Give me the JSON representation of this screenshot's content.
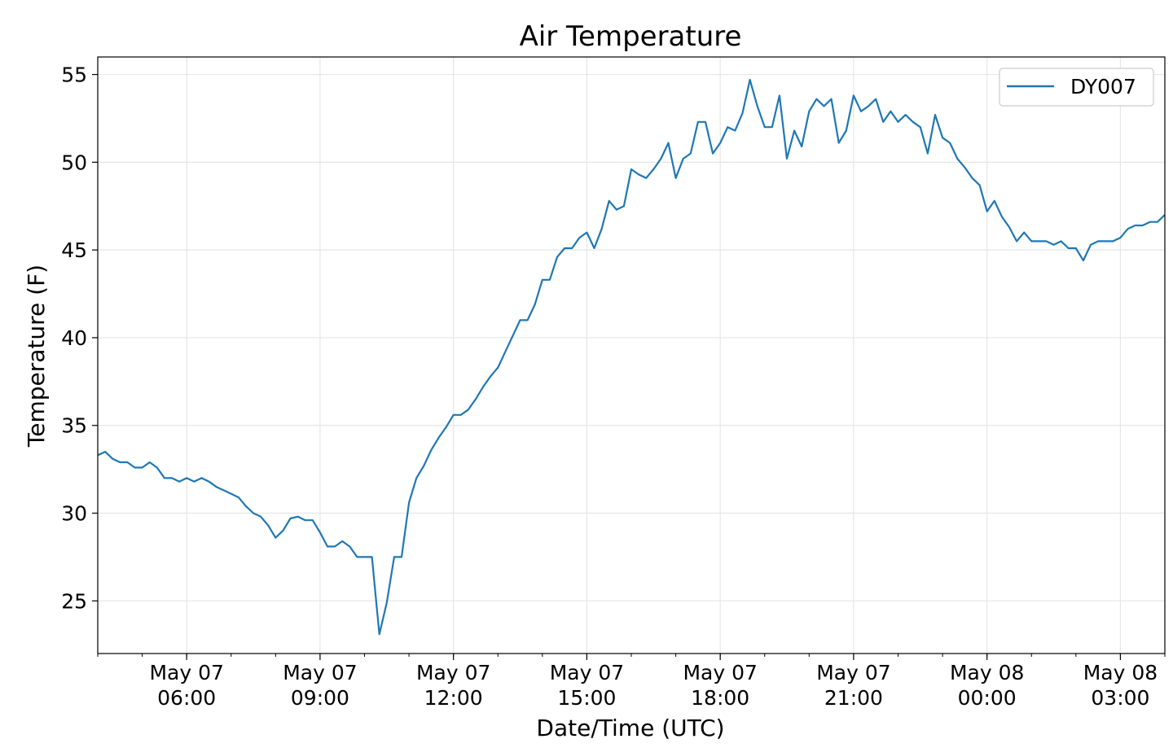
{
  "chart_data": {
    "type": "line",
    "title": "Air Temperature",
    "xlabel": "Date/Time (UTC)",
    "ylabel": "Temperature (F)",
    "x_unit": "datetime (UTC)",
    "xlim": [
      "2023-05-07T04:00",
      "2023-05-08T04:00"
    ],
    "ylim": [
      22,
      56
    ],
    "yticks": [
      25,
      30,
      35,
      40,
      45,
      50,
      55
    ],
    "xticks": [
      {
        "x": "2023-05-07T06:00",
        "label": [
          "May 07",
          "06:00"
        ]
      },
      {
        "x": "2023-05-07T09:00",
        "label": [
          "May 07",
          "09:00"
        ]
      },
      {
        "x": "2023-05-07T12:00",
        "label": [
          "May 07",
          "12:00"
        ]
      },
      {
        "x": "2023-05-07T15:00",
        "label": [
          "May 07",
          "15:00"
        ]
      },
      {
        "x": "2023-05-07T18:00",
        "label": [
          "May 07",
          "18:00"
        ]
      },
      {
        "x": "2023-05-07T21:00",
        "label": [
          "May 07",
          "21:00"
        ]
      },
      {
        "x": "2023-05-08T00:00",
        "label": [
          "May 08",
          "00:00"
        ]
      },
      {
        "x": "2023-05-08T03:00",
        "label": [
          "May 08",
          "03:00"
        ]
      }
    ],
    "grid": true,
    "legend_position": "top-right",
    "series": [
      {
        "name": "DY007",
        "color": "#1f77b4",
        "points": [
          [
            "2023-05-07T04:00",
            33.3
          ],
          [
            "2023-05-07T04:10",
            33.5
          ],
          [
            "2023-05-07T04:20",
            33.1
          ],
          [
            "2023-05-07T04:30",
            32.9
          ],
          [
            "2023-05-07T04:40",
            32.9
          ],
          [
            "2023-05-07T04:50",
            32.6
          ],
          [
            "2023-05-07T05:00",
            32.6
          ],
          [
            "2023-05-07T05:10",
            32.9
          ],
          [
            "2023-05-07T05:20",
            32.6
          ],
          [
            "2023-05-07T05:30",
            32.0
          ],
          [
            "2023-05-07T05:40",
            32.0
          ],
          [
            "2023-05-07T05:50",
            31.8
          ],
          [
            "2023-05-07T06:00",
            32.0
          ],
          [
            "2023-05-07T06:10",
            31.8
          ],
          [
            "2023-05-07T06:20",
            32.0
          ],
          [
            "2023-05-07T06:30",
            31.8
          ],
          [
            "2023-05-07T06:40",
            31.5
          ],
          [
            "2023-05-07T06:50",
            31.3
          ],
          [
            "2023-05-07T07:00",
            31.1
          ],
          [
            "2023-05-07T07:10",
            30.9
          ],
          [
            "2023-05-07T07:20",
            30.4
          ],
          [
            "2023-05-07T07:30",
            30.0
          ],
          [
            "2023-05-07T07:40",
            29.8
          ],
          [
            "2023-05-07T07:50",
            29.3
          ],
          [
            "2023-05-07T08:00",
            28.6
          ],
          [
            "2023-05-07T08:10",
            29.0
          ],
          [
            "2023-05-07T08:20",
            29.7
          ],
          [
            "2023-05-07T08:30",
            29.8
          ],
          [
            "2023-05-07T08:40",
            29.6
          ],
          [
            "2023-05-07T08:50",
            29.6
          ],
          [
            "2023-05-07T09:00",
            28.9
          ],
          [
            "2023-05-07T09:10",
            28.1
          ],
          [
            "2023-05-07T09:20",
            28.1
          ],
          [
            "2023-05-07T09:30",
            28.4
          ],
          [
            "2023-05-07T09:40",
            28.1
          ],
          [
            "2023-05-07T09:50",
            27.5
          ],
          [
            "2023-05-07T10:00",
            27.5
          ],
          [
            "2023-05-07T10:10",
            27.5
          ],
          [
            "2023-05-07T10:20",
            23.1
          ],
          [
            "2023-05-07T10:30",
            24.9
          ],
          [
            "2023-05-07T10:40",
            27.5
          ],
          [
            "2023-05-07T10:50",
            27.5
          ],
          [
            "2023-05-07T11:00",
            30.6
          ],
          [
            "2023-05-07T11:10",
            32.0
          ],
          [
            "2023-05-07T11:20",
            32.7
          ],
          [
            "2023-05-07T11:30",
            33.6
          ],
          [
            "2023-05-07T11:40",
            34.3
          ],
          [
            "2023-05-07T11:50",
            34.9
          ],
          [
            "2023-05-07T12:00",
            35.6
          ],
          [
            "2023-05-07T12:10",
            35.6
          ],
          [
            "2023-05-07T12:20",
            35.9
          ],
          [
            "2023-05-07T12:30",
            36.5
          ],
          [
            "2023-05-07T12:40",
            37.2
          ],
          [
            "2023-05-07T12:50",
            37.8
          ],
          [
            "2023-05-07T13:00",
            38.3
          ],
          [
            "2023-05-07T13:10",
            39.2
          ],
          [
            "2023-05-07T13:20",
            40.1
          ],
          [
            "2023-05-07T13:30",
            41.0
          ],
          [
            "2023-05-07T13:40",
            41.0
          ],
          [
            "2023-05-07T13:50",
            41.9
          ],
          [
            "2023-05-07T14:00",
            43.3
          ],
          [
            "2023-05-07T14:10",
            43.3
          ],
          [
            "2023-05-07T14:20",
            44.6
          ],
          [
            "2023-05-07T14:30",
            45.1
          ],
          [
            "2023-05-07T14:40",
            45.1
          ],
          [
            "2023-05-07T14:50",
            45.7
          ],
          [
            "2023-05-07T15:00",
            46.0
          ],
          [
            "2023-05-07T15:10",
            45.1
          ],
          [
            "2023-05-07T15:20",
            46.2
          ],
          [
            "2023-05-07T15:30",
            47.8
          ],
          [
            "2023-05-07T15:40",
            47.3
          ],
          [
            "2023-05-07T15:50",
            47.5
          ],
          [
            "2023-05-07T16:00",
            49.6
          ],
          [
            "2023-05-07T16:10",
            49.3
          ],
          [
            "2023-05-07T16:20",
            49.1
          ],
          [
            "2023-05-07T16:30",
            49.6
          ],
          [
            "2023-05-07T16:40",
            50.2
          ],
          [
            "2023-05-07T16:50",
            51.1
          ],
          [
            "2023-05-07T17:00",
            49.1
          ],
          [
            "2023-05-07T17:10",
            50.2
          ],
          [
            "2023-05-07T17:20",
            50.5
          ],
          [
            "2023-05-07T17:30",
            52.3
          ],
          [
            "2023-05-07T17:40",
            52.3
          ],
          [
            "2023-05-07T17:50",
            50.5
          ],
          [
            "2023-05-07T18:00",
            51.1
          ],
          [
            "2023-05-07T18:10",
            52.0
          ],
          [
            "2023-05-07T18:20",
            51.8
          ],
          [
            "2023-05-07T18:30",
            52.8
          ],
          [
            "2023-05-07T18:40",
            54.7
          ],
          [
            "2023-05-07T18:50",
            53.2
          ],
          [
            "2023-05-07T19:00",
            52.0
          ],
          [
            "2023-05-07T19:10",
            52.0
          ],
          [
            "2023-05-07T19:20",
            53.8
          ],
          [
            "2023-05-07T19:30",
            50.2
          ],
          [
            "2023-05-07T19:40",
            51.8
          ],
          [
            "2023-05-07T19:50",
            50.9
          ],
          [
            "2023-05-07T20:00",
            52.9
          ],
          [
            "2023-05-07T20:10",
            53.6
          ],
          [
            "2023-05-07T20:20",
            53.2
          ],
          [
            "2023-05-07T20:30",
            53.6
          ],
          [
            "2023-05-07T20:40",
            51.1
          ],
          [
            "2023-05-07T20:50",
            51.8
          ],
          [
            "2023-05-07T21:00",
            53.8
          ],
          [
            "2023-05-07T21:10",
            52.9
          ],
          [
            "2023-05-07T21:20",
            53.2
          ],
          [
            "2023-05-07T21:30",
            53.6
          ],
          [
            "2023-05-07T21:40",
            52.3
          ],
          [
            "2023-05-07T21:50",
            52.9
          ],
          [
            "2023-05-07T22:00",
            52.3
          ],
          [
            "2023-05-07T22:10",
            52.7
          ],
          [
            "2023-05-07T22:20",
            52.3
          ],
          [
            "2023-05-07T22:30",
            52.0
          ],
          [
            "2023-05-07T22:40",
            50.5
          ],
          [
            "2023-05-07T22:50",
            52.7
          ],
          [
            "2023-05-07T23:00",
            51.4
          ],
          [
            "2023-05-07T23:10",
            51.1
          ],
          [
            "2023-05-07T23:20",
            50.2
          ],
          [
            "2023-05-07T23:30",
            49.7
          ],
          [
            "2023-05-07T23:40",
            49.1
          ],
          [
            "2023-05-07T23:50",
            48.7
          ],
          [
            "2023-05-08T00:00",
            47.2
          ],
          [
            "2023-05-08T00:10",
            47.8
          ],
          [
            "2023-05-08T00:20",
            46.9
          ],
          [
            "2023-05-08T00:30",
            46.3
          ],
          [
            "2023-05-08T00:40",
            45.5
          ],
          [
            "2023-05-08T00:50",
            46.0
          ],
          [
            "2023-05-08T01:00",
            45.5
          ],
          [
            "2023-05-08T01:10",
            45.5
          ],
          [
            "2023-05-08T01:20",
            45.5
          ],
          [
            "2023-05-08T01:30",
            45.3
          ],
          [
            "2023-05-08T01:40",
            45.5
          ],
          [
            "2023-05-08T01:50",
            45.1
          ],
          [
            "2023-05-08T02:00",
            45.1
          ],
          [
            "2023-05-08T02:10",
            44.4
          ],
          [
            "2023-05-08T02:20",
            45.3
          ],
          [
            "2023-05-08T02:30",
            45.5
          ],
          [
            "2023-05-08T02:40",
            45.5
          ],
          [
            "2023-05-08T02:50",
            45.5
          ],
          [
            "2023-05-08T03:00",
            45.7
          ],
          [
            "2023-05-08T03:10",
            46.2
          ],
          [
            "2023-05-08T03:20",
            46.4
          ],
          [
            "2023-05-08T03:30",
            46.4
          ],
          [
            "2023-05-08T03:40",
            46.6
          ],
          [
            "2023-05-08T03:50",
            46.6
          ],
          [
            "2023-05-08T04:00",
            47.0
          ]
        ]
      }
    ]
  }
}
